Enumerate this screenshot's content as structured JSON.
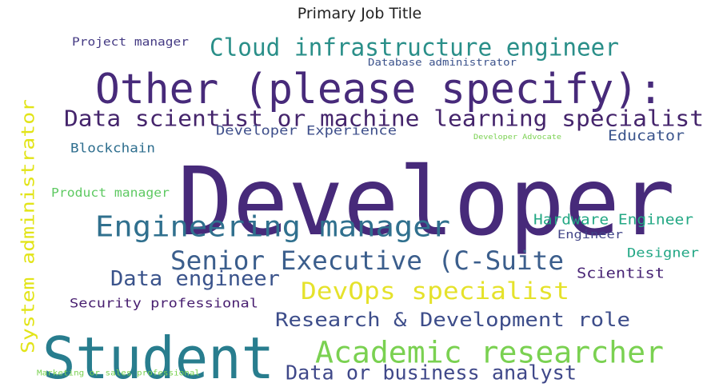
{
  "chart_data": {
    "type": "wordcloud",
    "title": "Primary Job Title",
    "words": [
      {
        "text": "Developer",
        "weight": 100,
        "color": "#472a7a"
      },
      {
        "text": "Other (please specify):",
        "weight": 44,
        "color": "#472a7a"
      },
      {
        "text": "Student",
        "weight": 68,
        "color": "#287d8e"
      },
      {
        "text": "Cloud infrastructure engineer",
        "weight": 27,
        "color": "#2a8f89"
      },
      {
        "text": "Data scientist or machine learning specialist",
        "weight": 27,
        "color": "#45256c"
      },
      {
        "text": "Engineering manager",
        "weight": 33,
        "color": "#30708e"
      },
      {
        "text": "Senior Executive (C-Suite",
        "weight": 30,
        "color": "#3b5e8c"
      },
      {
        "text": "DevOps specialist",
        "weight": 29,
        "color": "#e5e22b"
      },
      {
        "text": "Academic researcher",
        "weight": 35,
        "color": "#7ad151"
      },
      {
        "text": "Research & Development role",
        "weight": 24,
        "color": "#3d4d8a"
      },
      {
        "text": "Data engineer",
        "weight": 24,
        "color": "#3a538b"
      },
      {
        "text": "Data or business analyst",
        "weight": 24,
        "color": "#3f4889"
      },
      {
        "text": "System administrator",
        "weight": 22,
        "color": "#e2e418"
      },
      {
        "text": "Hardware Engineer",
        "weight": 17,
        "color": "#23a884"
      },
      {
        "text": "Educator",
        "weight": 17,
        "color": "#3a548c"
      },
      {
        "text": "Scientist",
        "weight": 17,
        "color": "#482475"
      },
      {
        "text": "Designer",
        "weight": 16,
        "color": "#22a785"
      },
      {
        "text": "Developer Experience",
        "weight": 15,
        "color": "#3d4e8a"
      },
      {
        "text": "Blockchain",
        "weight": 15,
        "color": "#2e6e8e"
      },
      {
        "text": "Security professional",
        "weight": 15,
        "color": "#481f70"
      },
      {
        "text": "Product manager",
        "weight": 14,
        "color": "#5ec962"
      },
      {
        "text": "Engineer",
        "weight": 14,
        "color": "#414487"
      },
      {
        "text": "Project manager",
        "weight": 13,
        "color": "#443a83"
      },
      {
        "text": "Database administrator",
        "weight": 12,
        "color": "#3b528b"
      },
      {
        "text": "Developer Advocate",
        "weight": 8,
        "color": "#7ad151"
      },
      {
        "text": "Marketing or sales professional",
        "weight": 9,
        "color": "#7ad151"
      }
    ]
  }
}
